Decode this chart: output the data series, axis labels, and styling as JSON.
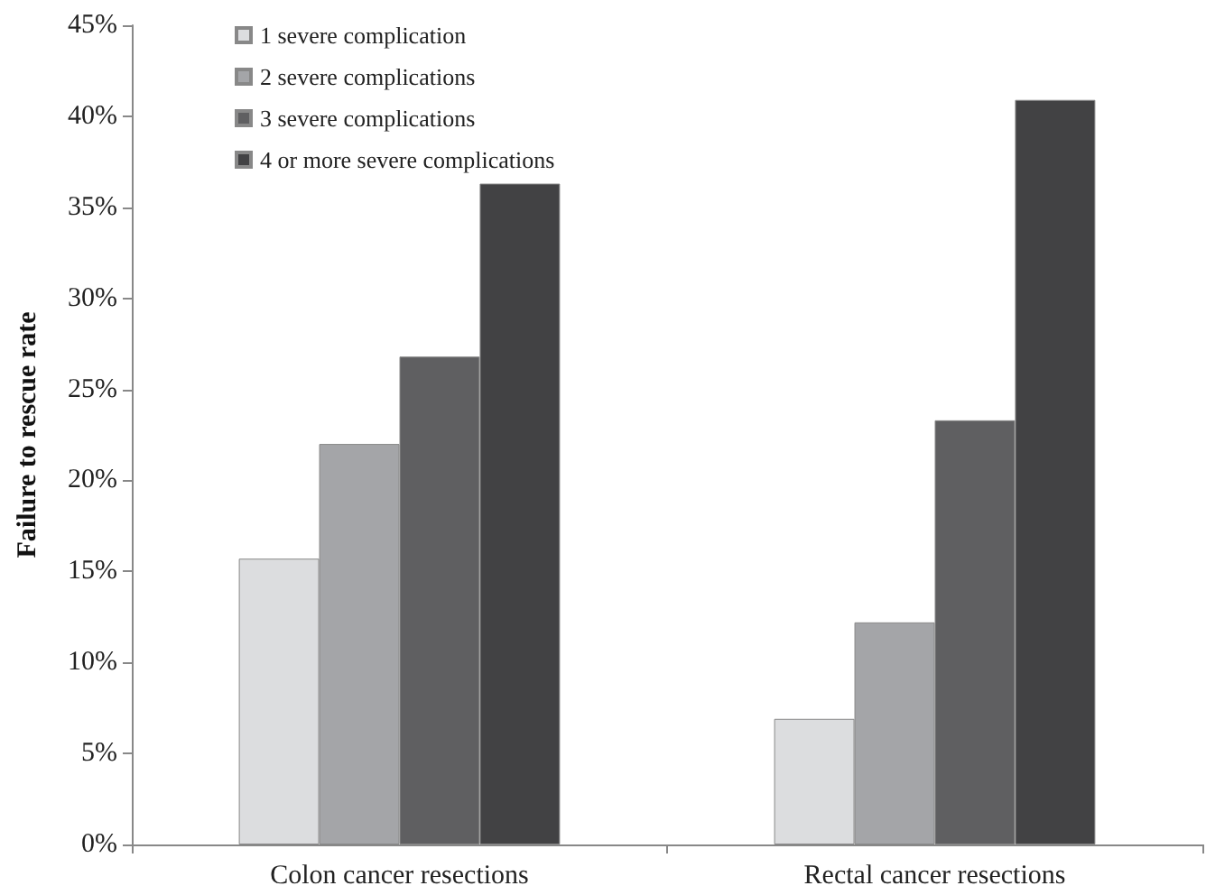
{
  "chart_data": {
    "type": "bar",
    "ylabel": "Failure to rescue rate",
    "categories": [
      "Colon cancer resections",
      "Rectal cancer resections"
    ],
    "series": [
      {
        "name": "1 severe complication",
        "color": "#dcdddf",
        "values": [
          15.7,
          6.9
        ]
      },
      {
        "name": "2 severe complications",
        "color": "#a4a5a8",
        "values": [
          22.0,
          12.2
        ]
      },
      {
        "name": "3 severe complications",
        "color": "#5f5f61",
        "values": [
          26.8,
          23.3
        ]
      },
      {
        "name": "4 or more severe complications",
        "color": "#424244",
        "values": [
          36.3,
          40.9
        ]
      }
    ],
    "ylim": [
      0,
      45
    ],
    "yticks": [
      {
        "value": 0,
        "label": "0%"
      },
      {
        "value": 5,
        "label": "5%"
      },
      {
        "value": 10,
        "label": "10%"
      },
      {
        "value": 15,
        "label": "15%"
      },
      {
        "value": 20,
        "label": "20%"
      },
      {
        "value": 25,
        "label": "25%"
      },
      {
        "value": 30,
        "label": "30%"
      },
      {
        "value": 35,
        "label": "35%"
      },
      {
        "value": 40,
        "label": "40%"
      },
      {
        "value": 45,
        "label": "45%"
      }
    ],
    "grid": false,
    "legend": "top left"
  }
}
